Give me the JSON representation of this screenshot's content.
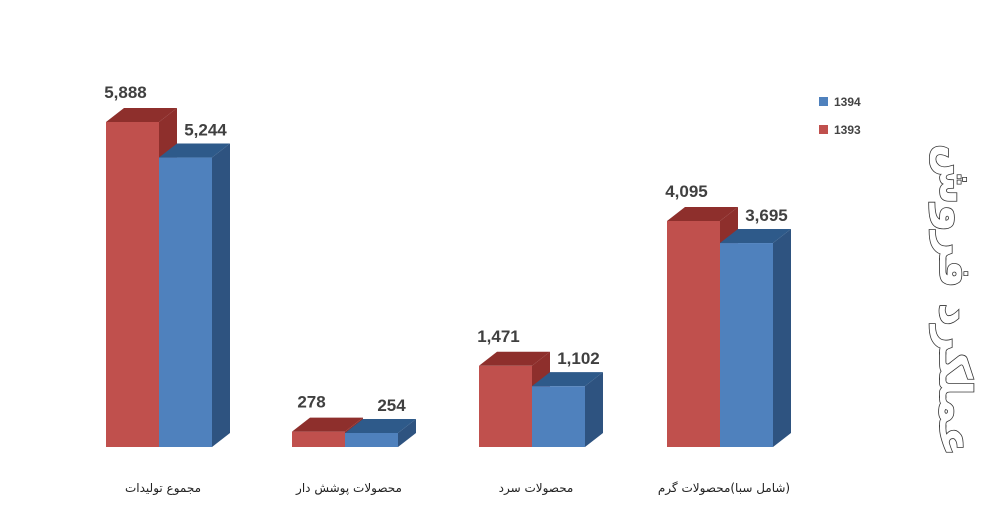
{
  "side_title": "عملکرد فروش",
  "chart_data": {
    "type": "bar",
    "categories": [
      "مجموع تولیدات",
      "محصولات پوشش دار",
      "محصولات سرد",
      "(شامل سبا)محصولات گرم"
    ],
    "series": [
      {
        "name": "1393",
        "values": [
          5888,
          278,
          1471,
          4095
        ],
        "labels": [
          "5,888",
          "278",
          "1,471",
          "4,095"
        ],
        "color": "#C0504D",
        "top_color": "#8E2F2C",
        "side_color": "#8E2F2C"
      },
      {
        "name": "1394",
        "values": [
          5244,
          254,
          1102,
          3695
        ],
        "labels": [
          "5,244",
          "254",
          "1,102",
          "3,695"
        ],
        "color": "#4F81BD",
        "top_color": "#2E5A8A",
        "side_color": "#2E5380"
      }
    ],
    "ylim": [
      0,
      5888
    ],
    "grid": false,
    "style": "3d-clustered-column",
    "legend": {
      "placement": "top-right",
      "order": [
        "1394",
        "1393"
      ]
    }
  }
}
